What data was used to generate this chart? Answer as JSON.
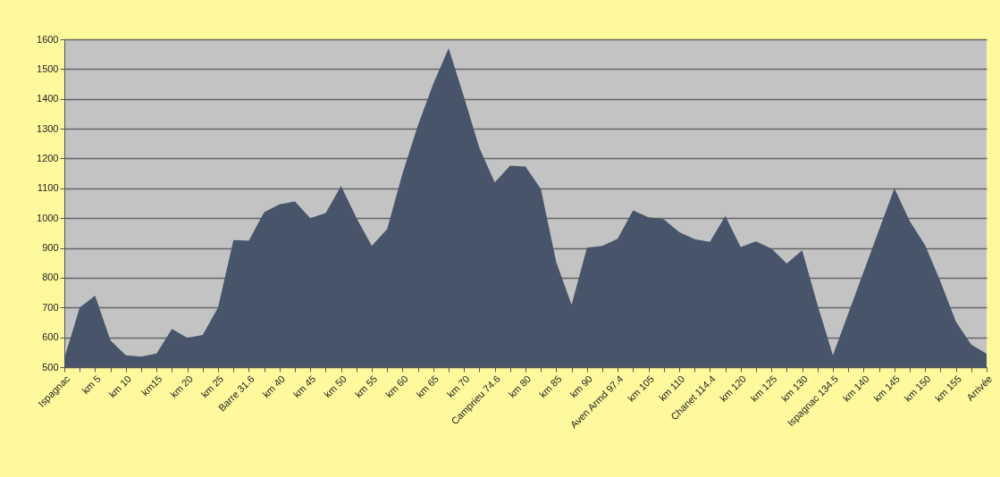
{
  "chart_data": {
    "type": "area",
    "categories": [
      "Ispagnac",
      null,
      "km 5",
      null,
      "km 10",
      null,
      "km15",
      null,
      "km 20",
      null,
      "km 25",
      null,
      "Barre  31.6",
      null,
      "km 40",
      null,
      "km 45",
      null,
      "km 50",
      null,
      "km 55",
      null,
      "km 60",
      null,
      "km 65",
      null,
      "km 70",
      null,
      "Camprieu 74.6",
      null,
      "km 80",
      null,
      "km 85",
      null,
      "km 90",
      null,
      "Aven Armd 97.4",
      null,
      "km 105",
      null,
      "km 110",
      null,
      "Chanet 114.4",
      null,
      "km 120",
      null,
      "km 125",
      null,
      "km 130",
      null,
      "Ispagnac 134.5",
      null,
      "km 140",
      null,
      "km 145",
      null,
      "km 150",
      null,
      "km 155",
      null,
      "Arrivée"
    ],
    "values": [
      530,
      700,
      740,
      590,
      540,
      535,
      546,
      628,
      598,
      608,
      700,
      926,
      924,
      1020,
      1046,
      1056,
      1000,
      1017,
      1108,
      1001,
      907,
      963,
      1150,
      1311,
      1450,
      1570,
      1407,
      1236,
      1120,
      1176,
      1173,
      1098,
      853,
      709,
      901,
      907,
      931,
      1026,
      1003,
      996,
      953,
      929,
      920,
      1007,
      903,
      922,
      898,
      848,
      892,
      709,
      540,
      680,
      820,
      960,
      1100,
      990,
      909,
      787,
      653,
      576,
      545
    ],
    "color": "#47546a",
    "ylim": [
      500,
      1600
    ],
    "yticks": [
      500,
      600,
      700,
      800,
      900,
      1000,
      1100,
      1200,
      1300,
      1400,
      1500,
      1600
    ],
    "grid": "y"
  }
}
